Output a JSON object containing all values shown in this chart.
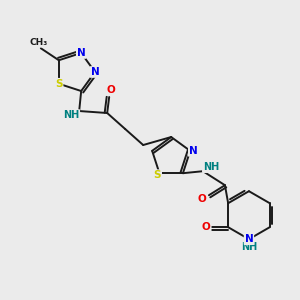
{
  "background_color": "#ebebeb",
  "bond_color": "#1a1a1a",
  "atom_colors": {
    "N": "#0000ee",
    "S": "#cccc00",
    "O": "#ee0000",
    "NH": "#008080",
    "C": "#1a1a1a",
    "CH3": "#1a1a1a"
  },
  "figsize": [
    3.0,
    3.0
  ],
  "dpi": 100
}
